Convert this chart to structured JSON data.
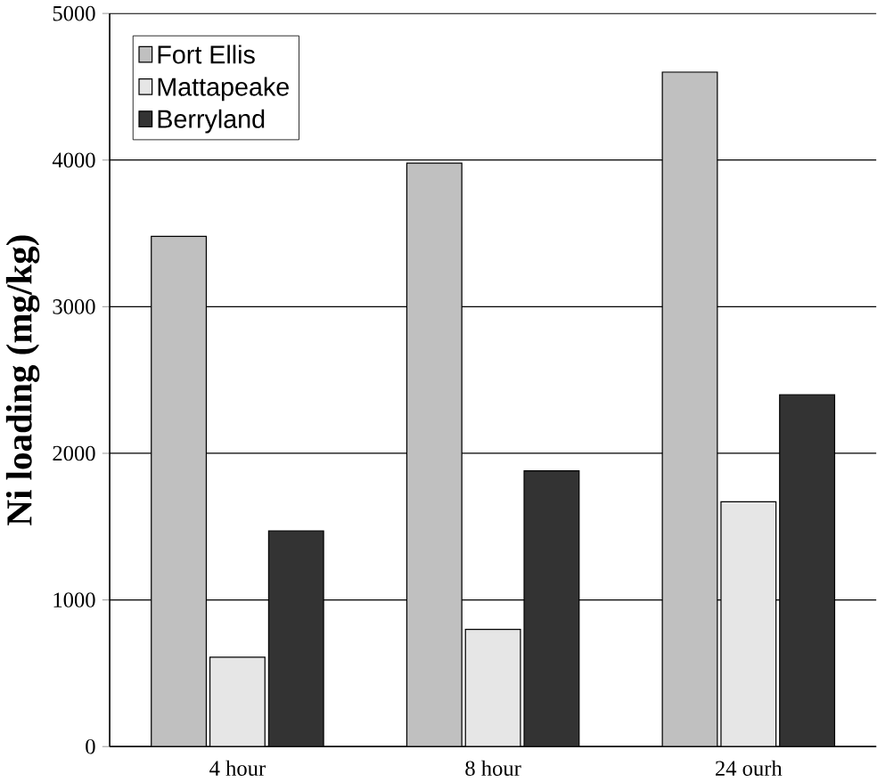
{
  "chart_data": {
    "type": "bar",
    "ylabel": "Ni loading (mg/kg)",
    "categories": [
      "4 hour",
      "8 hour",
      "24 ourh"
    ],
    "series": [
      {
        "name": "Fort Ellis",
        "color": "#c0c0c0",
        "values": [
          3480,
          3980,
          4600
        ]
      },
      {
        "name": "Mattapeake",
        "color": "#e6e6e6",
        "values": [
          610,
          800,
          1670
        ]
      },
      {
        "name": "Berryland",
        "color": "#333333",
        "values": [
          1470,
          1880,
          2400
        ]
      }
    ],
    "ylim": [
      0,
      5000
    ],
    "yticks": [
      0,
      1000,
      2000,
      3000,
      4000,
      5000
    ],
    "grid": "y",
    "legend": "top left"
  }
}
